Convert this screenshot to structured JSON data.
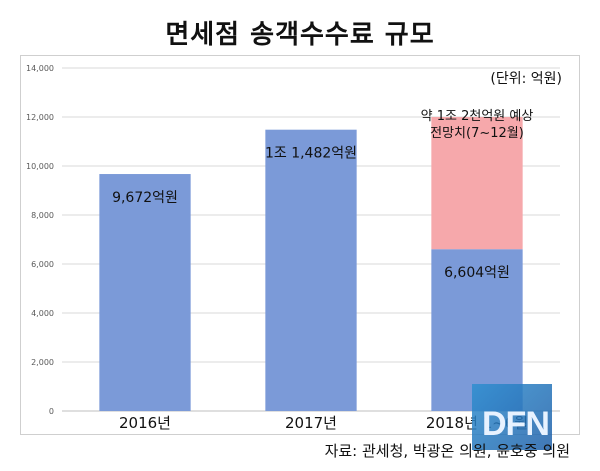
{
  "title": "면세점 송객수수료 규모",
  "unit": "(단위: 억원)",
  "source": "자료: 관세청, 박광온 의원, 윤호중 의원",
  "watermark": "DFN",
  "colors": {
    "bar": "#7b9ad8",
    "projection": "#f6a8ab",
    "grid": "#d9d9d9",
    "axis_text": "#595959"
  },
  "chart_data": {
    "type": "bar",
    "stacked": true,
    "categories": [
      "2016년",
      "2017년",
      "2018년 1~6월"
    ],
    "series": [
      {
        "values": [
          9672,
          11482,
          6604
        ]
      },
      {
        "values": [
          0,
          0,
          5396
        ]
      }
    ],
    "data_labels": [
      "9,672억원",
      "1조 1,482억원",
      "6,604억원"
    ],
    "annotation": [
      "약 1조 2천억원 예상",
      "전망치(7~12월)"
    ],
    "ylim": [
      0,
      14000
    ],
    "yticks": [
      "0",
      "2,000",
      "4,000",
      "6,000",
      "8,000",
      "10,000",
      "12,000",
      "14,000"
    ],
    "grid": true,
    "legend": "none"
  }
}
